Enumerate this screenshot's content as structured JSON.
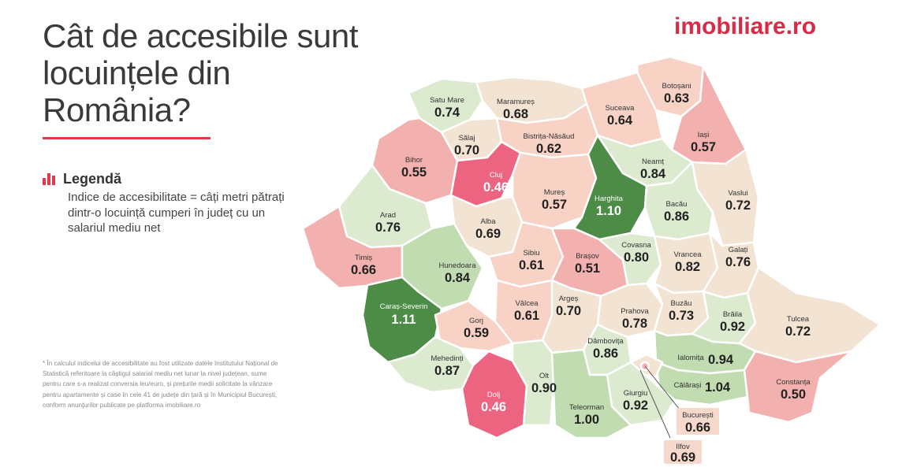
{
  "title": "Cât de accesibile sunt locuințele din România?",
  "brand": {
    "logo_text": "imobiliare.ro",
    "accent_color": "#d92a46"
  },
  "legend": {
    "title": "Legendă",
    "icon": "bar-chart-icon",
    "text": "Indice de accesibilitate = câți metri pătrați dintr-o locuință cumperi în județ cu un salariul mediu net"
  },
  "footnote": "* În calculul indicelui de accesibilitate au fost utilizate datele Institutului Național de Statistică referitoare la câștigul salarial mediu net lunar la nivel județean, sume pentru care s-a realizat conversia leu/euro, și prețurile medii solicitate la vânzare pentru apartamente și case în cele 41 de județe din țară și în Municipiul București, conform anunțurilor publicate pe platforma imobiliare.ro",
  "color_scale": {
    "very_low": "#ec6480",
    "low": "#f2b0ae",
    "mid_low": "#f7d2c5",
    "mid": "#f3e3d3",
    "mid_high": "#dcead0",
    "high": "#c1dcb0",
    "very_high": "#4d8c46"
  },
  "counties": [
    {
      "id": "satu-mare",
      "name": "Satu Mare",
      "value": "0.74"
    },
    {
      "id": "maramures",
      "name": "Maramureș",
      "value": "0.68"
    },
    {
      "id": "botosani",
      "name": "Botoșani",
      "value": "0.63"
    },
    {
      "id": "suceava",
      "name": "Suceava",
      "value": "0.64"
    },
    {
      "id": "salaj",
      "name": "Sălaj",
      "value": "0.70"
    },
    {
      "id": "bistrita-nasaud",
      "name": "Bistrița-Năsăud",
      "value": "0.62"
    },
    {
      "id": "iasi",
      "name": "Iași",
      "value": "0.57"
    },
    {
      "id": "bihor",
      "name": "Bihor",
      "value": "0.55"
    },
    {
      "id": "cluj",
      "name": "Cluj",
      "value": "0.46"
    },
    {
      "id": "neamt",
      "name": "Neamț",
      "value": "0.84"
    },
    {
      "id": "mures",
      "name": "Mureș",
      "value": "0.57"
    },
    {
      "id": "harghita",
      "name": "Harghita",
      "value": "1.10"
    },
    {
      "id": "vaslui",
      "name": "Vaslui",
      "value": "0.72"
    },
    {
      "id": "bacau",
      "name": "Bacău",
      "value": "0.86"
    },
    {
      "id": "arad",
      "name": "Arad",
      "value": "0.76"
    },
    {
      "id": "alba",
      "name": "Alba",
      "value": "0.69"
    },
    {
      "id": "timis",
      "name": "Timiș",
      "value": "0.66"
    },
    {
      "id": "hunedoara",
      "name": "Hunedoara",
      "value": "0.84"
    },
    {
      "id": "sibiu",
      "name": "Sibiu",
      "value": "0.61"
    },
    {
      "id": "brasov",
      "name": "Brașov",
      "value": "0.51"
    },
    {
      "id": "covasna",
      "name": "Covasna",
      "value": "0.80"
    },
    {
      "id": "vrancea",
      "name": "Vrancea",
      "value": "0.82"
    },
    {
      "id": "galati",
      "name": "Galați",
      "value": "0.76"
    },
    {
      "id": "caras-severin",
      "name": "Caraș-Severin",
      "value": "1.11"
    },
    {
      "id": "valcea",
      "name": "Vâlcea",
      "value": "0.61"
    },
    {
      "id": "arges",
      "name": "Argeș",
      "value": "0.70"
    },
    {
      "id": "prahova",
      "name": "Prahova",
      "value": "0.78"
    },
    {
      "id": "buzau",
      "name": "Buzău",
      "value": "0.73"
    },
    {
      "id": "braila",
      "name": "Brăila",
      "value": "0.92"
    },
    {
      "id": "tulcea",
      "name": "Tulcea",
      "value": "0.72"
    },
    {
      "id": "gorj",
      "name": "Gorj",
      "value": "0.59"
    },
    {
      "id": "dambovita",
      "name": "Dâmbovița",
      "value": "0.86"
    },
    {
      "id": "mehedinti",
      "name": "Mehedinți",
      "value": "0.87"
    },
    {
      "id": "ialomita",
      "name": "Ialomița",
      "value": "0.94"
    },
    {
      "id": "dolj",
      "name": "Dolj",
      "value": "0.46"
    },
    {
      "id": "olt",
      "name": "Olt",
      "value": "0.90"
    },
    {
      "id": "calarasi",
      "name": "Călărași",
      "value": "1.04"
    },
    {
      "id": "constanta",
      "name": "Constanța",
      "value": "0.50"
    },
    {
      "id": "giurgiu",
      "name": "Giurgiu",
      "value": "0.92"
    },
    {
      "id": "teleorman",
      "name": "Teleorman",
      "value": "1.00"
    },
    {
      "id": "bucuresti",
      "name": "București",
      "value": "0.66"
    },
    {
      "id": "ilfov",
      "name": "Ilfov",
      "value": "0.69"
    }
  ]
}
